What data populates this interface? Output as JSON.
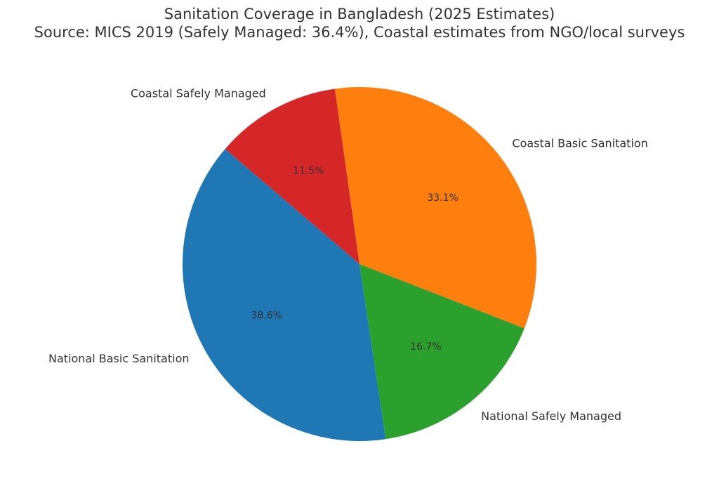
{
  "chart_data": {
    "type": "pie",
    "title": "Sanitation Coverage in Bangladesh (2025 Estimates)",
    "subtitle": "Source: MICS 2019 (Safely Managed: 36.4%), Coastal estimates from NGO/local surveys",
    "start_angle_deg": 98,
    "direction": "counterclockwise",
    "slices": [
      {
        "label": "Coastal Safely Managed",
        "value": 11.5,
        "pct_label": "11.5%",
        "color": "#d62728"
      },
      {
        "label": "National Basic Sanitation",
        "value": 38.6,
        "pct_label": "38.6%",
        "color": "#1f77b4"
      },
      {
        "label": "National Safely Managed",
        "value": 16.7,
        "pct_label": "16.7%",
        "color": "#2ca02c"
      },
      {
        "label": "Coastal Basic Sanitation",
        "value": 33.1,
        "pct_label": "33.1%",
        "color": "#ff7f0e"
      }
    ]
  }
}
